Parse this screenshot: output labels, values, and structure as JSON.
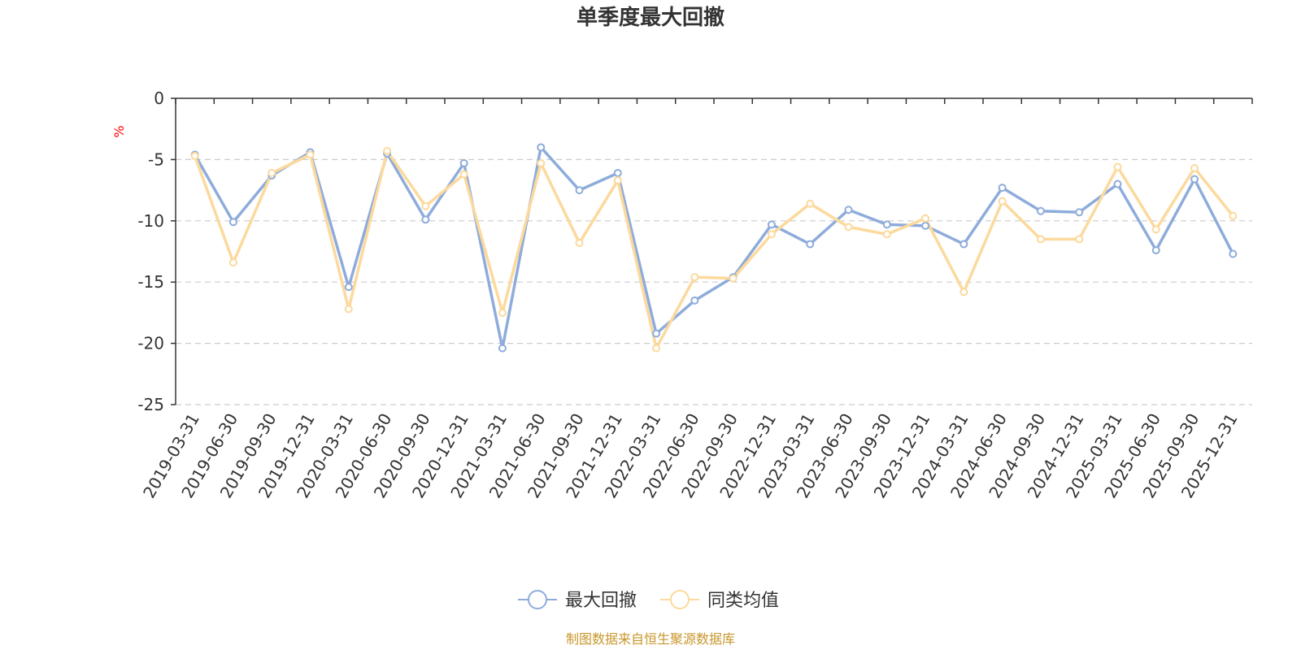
{
  "chart_data": {
    "type": "line",
    "title": "单季度最大回撤",
    "ylabel": "%",
    "ylim": [
      -25,
      0
    ],
    "yticks": [
      0,
      -5,
      -10,
      -15,
      -20,
      -25
    ],
    "grid": true,
    "legend_position": "bottom-center",
    "categories": [
      "2019-03-31",
      "2019-06-30",
      "2019-09-30",
      "2019-12-31",
      "2020-03-31",
      "2020-06-30",
      "2020-09-30",
      "2020-12-31",
      "2021-03-31",
      "2021-06-30",
      "2021-09-30",
      "2021-12-31",
      "2022-03-31",
      "2022-06-30",
      "2022-09-30",
      "2022-12-31",
      "2023-03-31",
      "2023-06-30",
      "2023-09-30",
      "2023-12-31",
      "2024-03-31",
      "2024-06-30",
      "2024-09-30",
      "2024-12-31",
      "2025-03-31",
      "2025-06-30",
      "2025-09-30",
      "2025-12-31"
    ],
    "series": [
      {
        "name": "最大回撤",
        "color": "#8eacdb",
        "values": [
          -4.6,
          -10.1,
          -6.3,
          -4.4,
          -15.4,
          -4.5,
          -9.9,
          -5.3,
          -20.4,
          -4.0,
          -7.5,
          -6.1,
          -19.2,
          -16.5,
          -14.6,
          -10.3,
          -11.9,
          -9.1,
          -10.3,
          -10.4,
          -11.9,
          -7.3,
          -9.2,
          -9.3,
          -7.0,
          -12.4,
          -6.6,
          -12.7
        ]
      },
      {
        "name": "同类均值",
        "color": "#fcd99c",
        "values": [
          -4.7,
          -13.4,
          -6.1,
          -4.6,
          -17.2,
          -4.3,
          -8.8,
          -6.2,
          -17.5,
          -5.3,
          -11.8,
          -6.7,
          -20.4,
          -14.6,
          -14.7,
          -11.1,
          -8.6,
          -10.5,
          -11.1,
          -9.8,
          -15.8,
          -8.4,
          -11.5,
          -11.5,
          -5.6,
          -10.7,
          -5.7,
          -9.6
        ]
      }
    ]
  },
  "source": "制图数据来自恒生聚源数据库"
}
